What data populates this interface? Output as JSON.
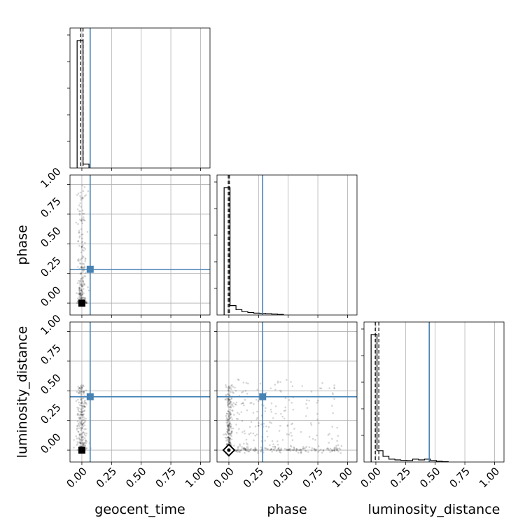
{
  "chart_data": {
    "type": "corner",
    "parameters": [
      "geocent_time",
      "phase",
      "luminosity_distance"
    ],
    "axis_range": [
      -0.1,
      1.08
    ],
    "ticks": [
      0.0,
      0.25,
      0.5,
      0.75,
      1.0
    ],
    "tick_labels": [
      "0.00",
      "0.25",
      "0.50",
      "0.75",
      "1.00"
    ],
    "grid": true,
    "truth_color": "#4682b4",
    "truths": {
      "geocent_time": 0.07,
      "phase": 0.285,
      "luminosity_distance": 0.45
    },
    "quantiles": {
      "geocent_time": [
        -0.01,
        0.01
      ],
      "phase": [
        -0.005,
        0.005
      ],
      "luminosity_distance": [
        -0.005,
        0.025
      ]
    },
    "histograms": {
      "geocent_time": {
        "bin_edges": [
          -0.04,
          0.01,
          0.06
        ],
        "heights": [
          0.96,
          0.03
        ]
      },
      "phase": {
        "bin_edges": [
          -0.04,
          0.01,
          0.06,
          0.11,
          0.16,
          0.21,
          0.26,
          0.31,
          0.36,
          0.41,
          0.46
        ],
        "heights": [
          0.95,
          0.07,
          0.04,
          0.025,
          0.018,
          0.014,
          0.012,
          0.01,
          0.007,
          0.004
        ]
      },
      "luminosity_distance": {
        "bin_edges": [
          -0.04,
          0.01,
          0.06,
          0.11,
          0.16,
          0.21,
          0.26,
          0.31,
          0.36,
          0.41,
          0.46,
          0.51,
          0.56,
          0.61
        ],
        "heights": [
          0.9,
          0.08,
          0.04,
          0.02,
          0.015,
          0.012,
          0.01,
          0.02,
          0.015,
          0.02,
          0.01,
          0.005,
          0.002
        ]
      }
    },
    "scatter_panels": [
      {
        "x": "geocent_time",
        "y": "phase",
        "marker": "square",
        "clusters": [
          {
            "x_center": 0.0,
            "x_spread": 0.02,
            "y_min": 0.0,
            "y_max": 1.0,
            "count": 260,
            "concentrate": 3.0
          }
        ]
      },
      {
        "x": "geocent_time",
        "y": "luminosity_distance",
        "marker": "square",
        "clusters": [
          {
            "x_center": 0.0,
            "x_spread": 0.02,
            "y_min": 0.0,
            "y_max": 0.55,
            "count": 240,
            "concentrate": 1.3
          }
        ]
      },
      {
        "x": "phase",
        "y": "luminosity_distance",
        "marker": "diamond",
        "clusters": [
          {
            "x_center": 0.0,
            "x_spread": 0.015,
            "y_min": 0.0,
            "y_max": 0.55,
            "count": 200,
            "concentrate": 1.3
          },
          {
            "x_min": 0.0,
            "x_max": 0.95,
            "y_center": 0.0,
            "y_spread": 0.012,
            "count": 160,
            "concentrate": 1.8
          },
          {
            "x_min": 0.0,
            "x_max": 0.95,
            "y_min": 0.0,
            "y_max": 0.6,
            "count": 230,
            "concentrate": 1.5
          }
        ]
      }
    ]
  }
}
